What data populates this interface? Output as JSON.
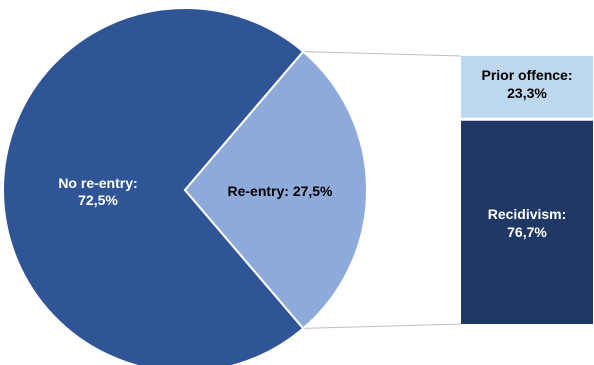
{
  "chart_data": {
    "type": "pie",
    "subtype": "bar-of-pie",
    "pie": {
      "slices": [
        {
          "label": "No re-entry:",
          "value_label": "72,5%",
          "value": 72.5,
          "color": "#2f5597",
          "text_color": "#ffffff"
        },
        {
          "label": "Re-entry: 27,5%",
          "value_label": "",
          "value": 27.5,
          "color": "#8eaadb",
          "text_color": "#000000"
        }
      ]
    },
    "breakdown": {
      "of_slice": "Re-entry",
      "segments": [
        {
          "label": "Prior offence:",
          "value_label": "23,3%",
          "value": 23.3,
          "color": "#bdd7ee",
          "text_color": "#000000"
        },
        {
          "label": "Recidivism:",
          "value_label": "76,7%",
          "value": 76.7,
          "color": "#203864",
          "text_color": "#ffffff"
        }
      ]
    },
    "connector_color": "#bfbfbf",
    "legend": "none"
  }
}
